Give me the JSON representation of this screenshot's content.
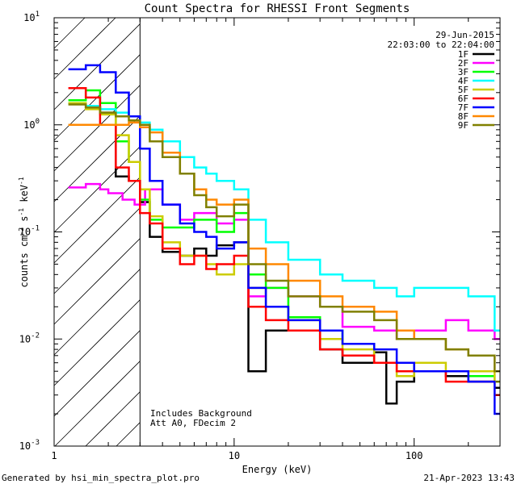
{
  "chart_data": {
    "type": "line",
    "title": "Count Spectra for RHESSI Front Segments",
    "xlabel": "Energy (keV)",
    "ylabel_main": "counts cm",
    "ylabel_sup1": "-2",
    "ylabel_mid1": " s",
    "ylabel_sup2": "-1",
    "ylabel_mid2": " keV",
    "ylabel_sup3": "-1",
    "xscale": "log",
    "yscale": "log",
    "xlim": [
      1,
      300
    ],
    "ylim": [
      0.001,
      10
    ],
    "x_ticks": [
      {
        "value": 1,
        "label": "1"
      },
      {
        "value": 10,
        "label": "10"
      },
      {
        "value": 100,
        "label": "100"
      }
    ],
    "y_ticks": [
      {
        "value": 0.001,
        "base": "10",
        "exp": "-3"
      },
      {
        "value": 0.01,
        "base": "10",
        "exp": "-2"
      },
      {
        "value": 0.1,
        "base": "10",
        "exp": "-1"
      },
      {
        "value": 1,
        "base": "10",
        "exp": "0"
      },
      {
        "value": 10,
        "base": "10",
        "exp": "1"
      }
    ],
    "date": "29-Jun-2015",
    "time_range": "22:03:00 to 22:04:00",
    "hatched_region_upper_keV": 3,
    "annotation_lines": [
      "Includes Background",
      "Att A0, FDecim 2"
    ],
    "legend_position": "top-right",
    "series": [
      {
        "name": "1F",
        "color": "#000000",
        "points": [
          [
            1.2,
            1.6
          ],
          [
            1.5,
            1.45
          ],
          [
            1.8,
            1.3
          ],
          [
            2.2,
            0.33
          ],
          [
            2.6,
            0.3
          ],
          [
            3.0,
            0.19
          ],
          [
            3.4,
            0.09
          ],
          [
            4.0,
            0.065
          ],
          [
            5.0,
            0.06
          ],
          [
            6.0,
            0.07
          ],
          [
            7.0,
            0.06
          ],
          [
            8.0,
            0.075
          ],
          [
            10.0,
            0.08
          ],
          [
            12.0,
            0.005
          ],
          [
            15.0,
            0.012
          ],
          [
            20.0,
            0.012
          ],
          [
            30.0,
            0.008
          ],
          [
            40.0,
            0.006
          ],
          [
            60.0,
            0.0075
          ],
          [
            70.0,
            0.0025
          ],
          [
            80.0,
            0.004
          ],
          [
            100.0,
            0.005
          ],
          [
            150.0,
            0.0045
          ],
          [
            200.0,
            0.004
          ],
          [
            280.0,
            0.0035
          ]
        ]
      },
      {
        "name": "2F",
        "color": "#ff00ff",
        "points": [
          [
            1.2,
            0.26
          ],
          [
            1.5,
            0.28
          ],
          [
            1.8,
            0.25
          ],
          [
            2.0,
            0.23
          ],
          [
            2.4,
            0.2
          ],
          [
            2.8,
            0.18
          ],
          [
            3.2,
            0.25
          ],
          [
            4.0,
            0.18
          ],
          [
            5.0,
            0.13
          ],
          [
            6.0,
            0.15
          ],
          [
            8.0,
            0.12
          ],
          [
            10.0,
            0.13
          ],
          [
            12.0,
            0.025
          ],
          [
            15.0,
            0.03
          ],
          [
            20.0,
            0.025
          ],
          [
            30.0,
            0.02
          ],
          [
            40.0,
            0.013
          ],
          [
            60.0,
            0.012
          ],
          [
            80.0,
            0.01
          ],
          [
            100.0,
            0.012
          ],
          [
            150.0,
            0.015
          ],
          [
            200.0,
            0.012
          ],
          [
            280.0,
            0.01
          ]
        ]
      },
      {
        "name": "3F",
        "color": "#00ff00",
        "points": [
          [
            1.2,
            1.7
          ],
          [
            1.5,
            2.1
          ],
          [
            1.8,
            1.6
          ],
          [
            2.2,
            0.7
          ],
          [
            2.6,
            0.45
          ],
          [
            3.0,
            0.2
          ],
          [
            3.4,
            0.13
          ],
          [
            4.0,
            0.11
          ],
          [
            5.0,
            0.11
          ],
          [
            6.0,
            0.13
          ],
          [
            8.0,
            0.1
          ],
          [
            10.0,
            0.15
          ],
          [
            12.0,
            0.04
          ],
          [
            15.0,
            0.03
          ],
          [
            20.0,
            0.016
          ],
          [
            30.0,
            0.012
          ],
          [
            40.0,
            0.009
          ],
          [
            60.0,
            0.006
          ],
          [
            80.0,
            0.006
          ],
          [
            100.0,
            0.005
          ],
          [
            150.0,
            0.005
          ],
          [
            200.0,
            0.0045
          ],
          [
            280.0,
            0.004
          ]
        ]
      },
      {
        "name": "4F",
        "color": "#00ffff",
        "points": [
          [
            1.2,
            1.6
          ],
          [
            1.5,
            1.5
          ],
          [
            1.8,
            1.4
          ],
          [
            2.2,
            1.3
          ],
          [
            2.6,
            1.2
          ],
          [
            3.0,
            1.05
          ],
          [
            3.4,
            0.9
          ],
          [
            4.0,
            0.7
          ],
          [
            5.0,
            0.5
          ],
          [
            6.0,
            0.4
          ],
          [
            7.0,
            0.35
          ],
          [
            8.0,
            0.3
          ],
          [
            10.0,
            0.25
          ],
          [
            12.0,
            0.13
          ],
          [
            15.0,
            0.08
          ],
          [
            20.0,
            0.055
          ],
          [
            30.0,
            0.04
          ],
          [
            40.0,
            0.035
          ],
          [
            60.0,
            0.03
          ],
          [
            80.0,
            0.025
          ],
          [
            100.0,
            0.03
          ],
          [
            150.0,
            0.03
          ],
          [
            200.0,
            0.025
          ],
          [
            280.0,
            0.012
          ]
        ]
      },
      {
        "name": "5F",
        "color": "#cccc00",
        "points": [
          [
            1.2,
            1.6
          ],
          [
            1.5,
            1.4
          ],
          [
            1.8,
            1.25
          ],
          [
            2.2,
            0.8
          ],
          [
            2.6,
            0.45
          ],
          [
            3.0,
            0.25
          ],
          [
            3.4,
            0.14
          ],
          [
            4.0,
            0.08
          ],
          [
            5.0,
            0.06
          ],
          [
            6.0,
            0.06
          ],
          [
            7.0,
            0.05
          ],
          [
            8.0,
            0.04
          ],
          [
            10.0,
            0.05
          ],
          [
            12.0,
            0.03
          ],
          [
            15.0,
            0.02
          ],
          [
            20.0,
            0.015
          ],
          [
            30.0,
            0.01
          ],
          [
            40.0,
            0.008
          ],
          [
            60.0,
            0.006
          ],
          [
            80.0,
            0.0045
          ],
          [
            100.0,
            0.006
          ],
          [
            150.0,
            0.005
          ],
          [
            200.0,
            0.005
          ],
          [
            280.0,
            0.004
          ]
        ]
      },
      {
        "name": "6F",
        "color": "#ff0000",
        "points": [
          [
            1.2,
            2.2
          ],
          [
            1.5,
            1.8
          ],
          [
            1.8,
            1.0
          ],
          [
            2.2,
            0.4
          ],
          [
            2.6,
            0.3
          ],
          [
            3.0,
            0.15
          ],
          [
            3.4,
            0.12
          ],
          [
            4.0,
            0.07
          ],
          [
            5.0,
            0.05
          ],
          [
            6.0,
            0.06
          ],
          [
            7.0,
            0.045
          ],
          [
            8.0,
            0.05
          ],
          [
            10.0,
            0.06
          ],
          [
            12.0,
            0.02
          ],
          [
            15.0,
            0.015
          ],
          [
            20.0,
            0.012
          ],
          [
            30.0,
            0.008
          ],
          [
            40.0,
            0.007
          ],
          [
            60.0,
            0.006
          ],
          [
            80.0,
            0.005
          ],
          [
            100.0,
            0.005
          ],
          [
            150.0,
            0.004
          ],
          [
            200.0,
            0.004
          ],
          [
            280.0,
            0.003
          ]
        ]
      },
      {
        "name": "7F",
        "color": "#0000ff",
        "points": [
          [
            1.2,
            3.3
          ],
          [
            1.5,
            3.6
          ],
          [
            1.8,
            3.1
          ],
          [
            2.2,
            2.0
          ],
          [
            2.6,
            1.2
          ],
          [
            3.0,
            0.6
          ],
          [
            3.4,
            0.3
          ],
          [
            4.0,
            0.18
          ],
          [
            5.0,
            0.12
          ],
          [
            6.0,
            0.1
          ],
          [
            7.0,
            0.09
          ],
          [
            8.0,
            0.07
          ],
          [
            10.0,
            0.08
          ],
          [
            12.0,
            0.03
          ],
          [
            15.0,
            0.02
          ],
          [
            20.0,
            0.015
          ],
          [
            30.0,
            0.012
          ],
          [
            40.0,
            0.009
          ],
          [
            60.0,
            0.008
          ],
          [
            80.0,
            0.006
          ],
          [
            100.0,
            0.005
          ],
          [
            150.0,
            0.005
          ],
          [
            200.0,
            0.004
          ],
          [
            280.0,
            0.002
          ]
        ]
      },
      {
        "name": "8F",
        "color": "#ff8800",
        "points": [
          [
            1.2,
            1.0
          ],
          [
            1.5,
            1.0
          ],
          [
            1.8,
            1.0
          ],
          [
            2.2,
            1.0
          ],
          [
            2.6,
            1.05
          ],
          [
            3.0,
            0.95
          ],
          [
            3.4,
            0.85
          ],
          [
            4.0,
            0.55
          ],
          [
            5.0,
            0.35
          ],
          [
            6.0,
            0.25
          ],
          [
            7.0,
            0.2
          ],
          [
            8.0,
            0.18
          ],
          [
            10.0,
            0.2
          ],
          [
            12.0,
            0.07
          ],
          [
            15.0,
            0.05
          ],
          [
            20.0,
            0.035
          ],
          [
            30.0,
            0.025
          ],
          [
            40.0,
            0.02
          ],
          [
            60.0,
            0.018
          ],
          [
            80.0,
            0.012
          ],
          [
            100.0,
            0.01
          ],
          [
            150.0,
            0.008
          ],
          [
            200.0,
            0.007
          ],
          [
            280.0,
            0.005
          ]
        ]
      },
      {
        "name": "9F",
        "color": "#808000",
        "points": [
          [
            1.2,
            1.55
          ],
          [
            1.5,
            1.45
          ],
          [
            1.8,
            1.3
          ],
          [
            2.2,
            1.2
          ],
          [
            2.6,
            1.1
          ],
          [
            3.0,
            1.0
          ],
          [
            3.4,
            0.7
          ],
          [
            4.0,
            0.5
          ],
          [
            5.0,
            0.35
          ],
          [
            6.0,
            0.22
          ],
          [
            7.0,
            0.17
          ],
          [
            8.0,
            0.14
          ],
          [
            10.0,
            0.18
          ],
          [
            12.0,
            0.05
          ],
          [
            15.0,
            0.035
          ],
          [
            20.0,
            0.025
          ],
          [
            30.0,
            0.02
          ],
          [
            40.0,
            0.018
          ],
          [
            60.0,
            0.015
          ],
          [
            80.0,
            0.01
          ],
          [
            100.0,
            0.01
          ],
          [
            150.0,
            0.008
          ],
          [
            200.0,
            0.007
          ],
          [
            280.0,
            0.005
          ]
        ]
      }
    ]
  },
  "footer": {
    "generated_by": "Generated by hsi_min_spectra_plot.pro",
    "timestamp": "21-Apr-2023 13:43"
  }
}
